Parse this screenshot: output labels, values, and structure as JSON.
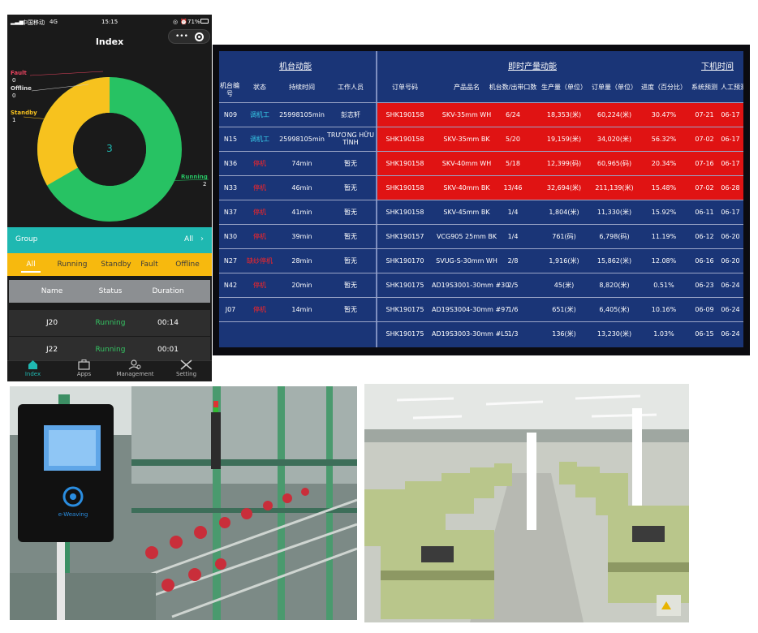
{
  "phone": {
    "status_bar": {
      "carrier": "中国移动",
      "network": "4G",
      "time": "15:15",
      "battery": "71%"
    },
    "nav_title": "Index",
    "capsule": {
      "menu_icon": "more-dots-icon",
      "close_icon": "target-icon"
    },
    "donut": {
      "center_value": "3",
      "legend": [
        {
          "label": "Fault",
          "value": "0",
          "color": "#e8435f"
        },
        {
          "label": "Offline",
          "value": "0",
          "color": "#dddddd"
        },
        {
          "label": "Standby",
          "value": "1",
          "color": "#f7c21e"
        },
        {
          "label": "Running",
          "value": "2",
          "color": "#27c263"
        }
      ]
    },
    "group": {
      "label": "Group",
      "value": "All"
    },
    "filter_tabs": [
      "All",
      "Running",
      "Standby",
      "Fault",
      "Offline"
    ],
    "table": {
      "headers": [
        "Name",
        "Status",
        "Duration"
      ],
      "rows": [
        {
          "name": "J20",
          "status": "Running",
          "duration": "00:14"
        },
        {
          "name": "J22",
          "status": "Running",
          "duration": "00:01"
        }
      ]
    },
    "tabbar": [
      {
        "label": "Index",
        "icon": "home-icon"
      },
      {
        "label": "Apps",
        "icon": "briefcase-icon"
      },
      {
        "label": "Management",
        "icon": "user-gear-icon"
      },
      {
        "label": "Setting",
        "icon": "tools-icon"
      }
    ]
  },
  "dashboard": {
    "sections": {
      "left": "机台动能",
      "middle": "即时产量动能",
      "right": "下机时间"
    },
    "columns": [
      "机台编号",
      "状态",
      "持续时间",
      "工作人员",
      "订单号码",
      "产品品名",
      "机台数/出带口数",
      "生产量（单位）",
      "订单量（单位）",
      "进度（百分比）",
      "系统预测",
      "人工预测"
    ],
    "rows": [
      {
        "machine": "N09",
        "status": "调机工",
        "status_color": "cyan",
        "duration": "25998105min",
        "staff": "彭志轩",
        "order": "SHK190158",
        "product": "SKV-35mm WH",
        "count": "6/24",
        "output": "18,353(米)",
        "order_qty": "60,224(米)",
        "progress": "30.47%",
        "sys_pred": "07-21",
        "man_pred": "06-17",
        "highlight": true
      },
      {
        "machine": "N15",
        "status": "调机工",
        "status_color": "cyan",
        "duration": "25998105min",
        "staff": "TRƯƠNG HỮU TÌNH",
        "order": "SHK190158",
        "product": "SKV-35mm BK",
        "count": "5/20",
        "output": "19,159(米)",
        "order_qty": "34,020(米)",
        "progress": "56.32%",
        "sys_pred": "07-02",
        "man_pred": "06-17",
        "highlight": true
      },
      {
        "machine": "N36",
        "status": "停机",
        "status_color": "red",
        "duration": "74min",
        "staff": "暂无",
        "order": "SHK190158",
        "product": "SKV-40mm WH",
        "count": "5/18",
        "output": "12,399(码)",
        "order_qty": "60,965(码)",
        "progress": "20.34%",
        "sys_pred": "07-16",
        "man_pred": "06-17",
        "highlight": true
      },
      {
        "machine": "N33",
        "status": "停机",
        "status_color": "red",
        "duration": "46min",
        "staff": "暂无",
        "order": "SHK190158",
        "product": "SKV-40mm BK",
        "count": "13/46",
        "output": "32,694(米)",
        "order_qty": "211,139(米)",
        "progress": "15.48%",
        "sys_pred": "07-02",
        "man_pred": "06-28",
        "highlight": true
      },
      {
        "machine": "N37",
        "status": "停机",
        "status_color": "red",
        "duration": "41min",
        "staff": "暂无",
        "order": "SHK190158",
        "product": "SKV-45mm BK",
        "count": "1/4",
        "output": "1,804(米)",
        "order_qty": "11,330(米)",
        "progress": "15.92%",
        "sys_pred": "06-11",
        "man_pred": "06-17",
        "highlight": false
      },
      {
        "machine": "N30",
        "status": "停机",
        "status_color": "red",
        "duration": "39min",
        "staff": "暂无",
        "order": "SHK190157",
        "product": "VCG905 25mm BK",
        "count": "1/4",
        "output": "761(码)",
        "order_qty": "6,798(码)",
        "progress": "11.19%",
        "sys_pred": "06-12",
        "man_pred": "06-20",
        "highlight": false
      },
      {
        "machine": "N27",
        "status": "缺纱停机",
        "status_color": "red",
        "duration": "28min",
        "staff": "暂无",
        "order": "SHK190170",
        "product": "SVUG-S-30mm WH",
        "count": "2/8",
        "output": "1,916(米)",
        "order_qty": "15,862(米)",
        "progress": "12.08%",
        "sys_pred": "06-16",
        "man_pred": "06-20",
        "highlight": false
      },
      {
        "machine": "N42",
        "status": "停机",
        "status_color": "red",
        "duration": "20min",
        "staff": "暂无",
        "order": "SHK190175",
        "product": "AD19S3001-30mm #30",
        "count": "2/5",
        "output": "45(米)",
        "order_qty": "8,820(米)",
        "progress": "0.51%",
        "sys_pred": "06-23",
        "man_pred": "06-24",
        "highlight": false
      },
      {
        "machine": "J07",
        "status": "停机",
        "status_color": "red",
        "duration": "14min",
        "staff": "暂无",
        "order": "SHK190175",
        "product": "AD19S3004-30mm #97",
        "count": "1/6",
        "output": "651(米)",
        "order_qty": "6,405(米)",
        "progress": "10.16%",
        "sys_pred": "06-09",
        "man_pred": "06-24",
        "highlight": false
      },
      {
        "machine": "",
        "status": "",
        "status_color": "",
        "duration": "",
        "staff": "",
        "order": "SHK190175",
        "product": "AD19S3003-30mm #L5",
        "count": "1/3",
        "output": "136(米)",
        "order_qty": "13,230(米)",
        "progress": "1.03%",
        "sys_pred": "06-15",
        "man_pred": "06-24",
        "highlight": false
      }
    ]
  },
  "photos": {
    "left_device_logo": "e-Weaving"
  }
}
